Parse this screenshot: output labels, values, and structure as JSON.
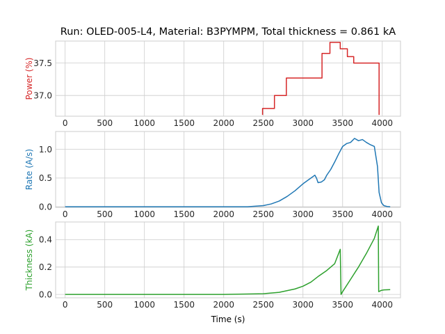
{
  "chart_data": {
    "type": "line",
    "title": "Run: OLED-005-L4, Material: B3PYMPM, Total thickness = 0.861 kA",
    "xlabel": "Time (s)",
    "xlim": [
      -120,
      4230
    ],
    "xticks": [
      0,
      500,
      1000,
      1500,
      2000,
      2500,
      3000,
      3500,
      4000
    ],
    "grid": true,
    "panels": [
      {
        "ylabel": "Power (%)",
        "color": "#d62728",
        "ylim": [
          36.68,
          37.84
        ],
        "yticks": [
          37.0,
          37.5
        ],
        "ytick_labels": [
          "37.0",
          "37.5"
        ],
        "series": {
          "x": [
            2490,
            2490,
            2640,
            2640,
            2790,
            2790,
            3240,
            3240,
            3340,
            3340,
            3470,
            3470,
            3560,
            3560,
            3640,
            3640,
            3960,
            3960
          ],
          "y": [
            36.7,
            36.8,
            36.8,
            37.0,
            37.0,
            37.27,
            37.27,
            37.65,
            37.65,
            37.82,
            37.82,
            37.72,
            37.72,
            37.6,
            37.6,
            37.5,
            37.5,
            36.7
          ]
        }
      },
      {
        "ylabel": "Rate (A/s)",
        "color": "#1f77b4",
        "ylim": [
          -0.01,
          1.31
        ],
        "yticks": [
          0.0,
          0.5,
          1.0
        ],
        "ytick_labels": [
          "0.0",
          "0.5",
          "1.0"
        ],
        "series": {
          "x": [
            0,
            500,
            1000,
            1500,
            2000,
            2300,
            2500,
            2600,
            2700,
            2800,
            2900,
            3000,
            3050,
            3100,
            3150,
            3170,
            3190,
            3230,
            3270,
            3300,
            3350,
            3400,
            3450,
            3500,
            3550,
            3600,
            3650,
            3700,
            3750,
            3800,
            3850,
            3900,
            3940,
            3960,
            3990,
            4020,
            4060,
            4100
          ],
          "y": [
            0.0,
            0.0,
            0.0,
            0.0,
            0.0,
            0.0,
            0.02,
            0.05,
            0.1,
            0.18,
            0.28,
            0.4,
            0.45,
            0.5,
            0.55,
            0.5,
            0.42,
            0.43,
            0.47,
            0.55,
            0.65,
            0.78,
            0.92,
            1.05,
            1.1,
            1.12,
            1.19,
            1.15,
            1.17,
            1.12,
            1.08,
            1.05,
            0.7,
            0.25,
            0.07,
            0.02,
            0.005,
            0.0
          ]
        }
      },
      {
        "ylabel": "Thickness (kA)",
        "color": "#2ca02c",
        "ylim": [
          -0.025,
          0.53
        ],
        "yticks": [
          0.0,
          0.2,
          0.4
        ],
        "ytick_labels": [
          "0.0",
          "0.2",
          "0.4"
        ],
        "series": {
          "x": [
            0,
            1000,
            2000,
            2500,
            2700,
            2900,
            3000,
            3100,
            3200,
            3300,
            3400,
            3470,
            3480,
            3500,
            3600,
            3700,
            3800,
            3900,
            3950,
            3955,
            3990,
            4020,
            4100
          ],
          "y": [
            0.0,
            0.0,
            0.0,
            0.005,
            0.015,
            0.04,
            0.06,
            0.09,
            0.135,
            0.175,
            0.225,
            0.33,
            0.0,
            0.02,
            0.11,
            0.2,
            0.3,
            0.41,
            0.5,
            0.02,
            0.03,
            0.033,
            0.035
          ]
        }
      }
    ]
  }
}
